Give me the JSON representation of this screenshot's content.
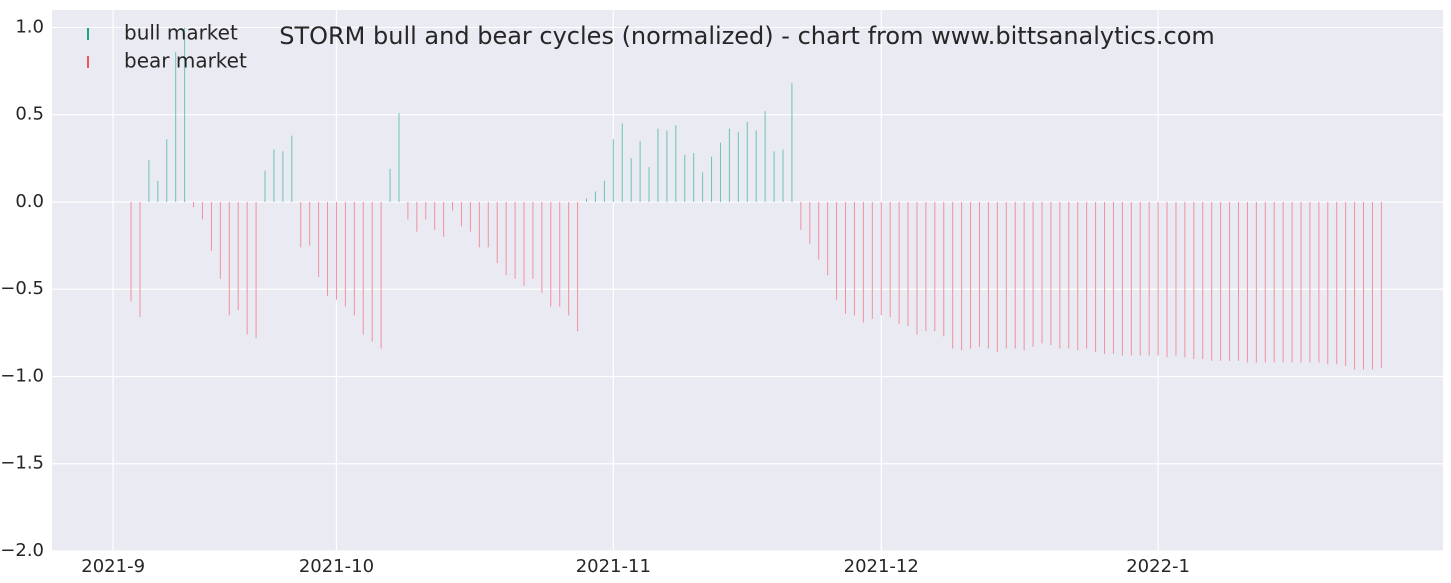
{
  "chart_data": {
    "type": "bar",
    "title": "STORM bull and bear cycles (normalized)  - chart from www.bittsanalytics.com",
    "legend": "upper left",
    "grid": true,
    "xlim": [
      -8.85,
      146.9
    ],
    "xticks": [
      {
        "value": -2,
        "label": "2021-9"
      },
      {
        "value": 23,
        "label": "2021-10"
      },
      {
        "value": 54,
        "label": "2021-11"
      },
      {
        "value": 84,
        "label": "2021-12"
      },
      {
        "value": 115,
        "label": "2022-1"
      }
    ],
    "ylim": [
      -2.0,
      1.1
    ],
    "yticks": [
      {
        "value": -2.0,
        "label": "−2.0"
      },
      {
        "value": -1.5,
        "label": "−1.5"
      },
      {
        "value": -1.0,
        "label": "−1.0"
      },
      {
        "value": -0.5,
        "label": "−0.5"
      },
      {
        "value": 0.0,
        "label": "0.0"
      },
      {
        "value": 0.5,
        "label": "0.5"
      },
      {
        "value": 1.0,
        "label": "1.0"
      }
    ],
    "series": [
      {
        "name": "bull market",
        "color": "#1fa187",
        "bar_color": "#6cc3b4",
        "values": [
          null,
          null,
          0.24,
          0.12,
          0.36,
          0.86,
          1.0,
          null,
          null,
          null,
          null,
          null,
          null,
          null,
          null,
          0.18,
          0.3,
          0.29,
          0.38,
          null,
          null,
          null,
          null,
          null,
          null,
          null,
          null,
          null,
          null,
          0.19,
          0.51,
          null,
          null,
          null,
          null,
          null,
          null,
          null,
          null,
          null,
          null,
          null,
          null,
          null,
          null,
          null,
          null,
          null,
          null,
          null,
          null,
          0.02,
          0.06,
          0.12,
          0.36,
          0.45,
          0.25,
          0.35,
          0.2,
          0.42,
          0.41,
          0.44,
          0.27,
          0.28,
          0.17,
          0.26,
          0.34,
          0.42,
          0.4,
          0.46,
          0.41,
          0.52,
          0.29,
          0.3,
          0.68,
          null,
          null,
          null,
          null,
          null,
          null,
          null,
          null,
          null,
          null,
          null,
          null,
          null,
          null,
          null,
          null,
          null,
          null,
          null,
          null,
          null,
          null,
          null,
          null,
          null,
          null,
          null,
          null,
          null,
          null,
          null,
          null,
          null,
          null,
          null,
          null,
          null,
          null,
          null,
          null,
          null,
          null,
          null,
          null,
          null,
          null,
          null,
          null,
          null,
          null,
          null,
          null,
          null,
          null,
          null,
          null,
          null,
          null,
          null,
          null,
          null,
          null
        ]
      },
      {
        "name": "bear market",
        "color": "#f2545b",
        "bar_color": "#f2909e",
        "values": [
          -0.57,
          -0.66,
          null,
          null,
          null,
          null,
          null,
          -0.03,
          -0.1,
          -0.28,
          -0.44,
          -0.65,
          -0.62,
          -0.76,
          -0.78,
          null,
          null,
          null,
          null,
          -0.26,
          -0.25,
          -0.43,
          -0.54,
          -0.56,
          -0.6,
          -0.65,
          -0.76,
          -0.8,
          -0.84,
          null,
          null,
          -0.1,
          -0.17,
          -0.1,
          -0.16,
          -0.2,
          -0.05,
          -0.14,
          -0.17,
          -0.26,
          -0.26,
          -0.35,
          -0.42,
          -0.44,
          -0.48,
          -0.44,
          -0.52,
          -0.6,
          -0.6,
          -0.65,
          -0.74,
          null,
          null,
          null,
          null,
          null,
          null,
          null,
          null,
          null,
          null,
          null,
          null,
          null,
          null,
          null,
          null,
          null,
          null,
          null,
          null,
          null,
          null,
          null,
          null,
          -0.16,
          -0.24,
          -0.33,
          -0.42,
          -0.56,
          -0.64,
          -0.65,
          -0.69,
          -0.67,
          -0.65,
          -0.66,
          -0.7,
          -0.71,
          -0.76,
          -0.74,
          -0.74,
          -0.77,
          -0.84,
          -0.85,
          -0.84,
          -0.83,
          -0.84,
          -0.86,
          -0.84,
          -0.84,
          -0.85,
          -0.83,
          -0.81,
          -0.82,
          -0.84,
          -0.84,
          -0.85,
          -0.84,
          -0.86,
          -0.87,
          -0.87,
          -0.88,
          -0.88,
          -0.88,
          -0.88,
          -0.88,
          -0.89,
          -0.88,
          -0.89,
          -0.9,
          -0.9,
          -0.91,
          -0.91,
          -0.91,
          -0.91,
          -0.92,
          -0.92,
          -0.92,
          -0.92,
          -0.92,
          -0.92,
          -0.92,
          -0.92,
          -0.92,
          -0.93,
          -0.93,
          -0.94,
          -0.96,
          -0.96,
          -0.96,
          -0.95
        ]
      }
    ]
  }
}
